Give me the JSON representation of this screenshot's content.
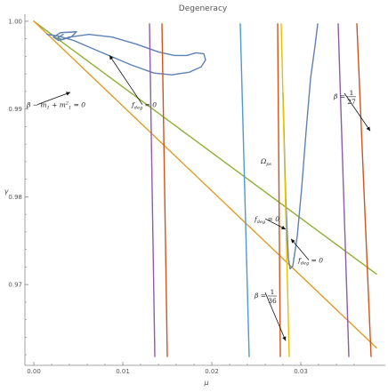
{
  "chart_data": {
    "type": "line",
    "title": "Degeneracy",
    "xlabel": "μ",
    "ylabel": "γ",
    "xlim": [
      -0.001,
      0.0395
    ],
    "ylim": [
      0.9608,
      1.0008
    ],
    "xticks": [
      0.0,
      0.01,
      0.02,
      0.03
    ],
    "xtick_labels": [
      "0.00",
      "0.01",
      "0.02",
      "0.03"
    ],
    "yticks": [
      1.0,
      0.99,
      0.98,
      0.97
    ],
    "ytick_labels": [
      "1.00",
      "0.99",
      "0.98",
      "0.97"
    ],
    "grid": false,
    "colors": {
      "blue": "#5e81b5",
      "olive": "#8fb032",
      "gold": "#e19c24",
      "yellow": "#e7c000",
      "purple": "#8e5ba8",
      "orange": "#d0541c",
      "teal": "#4c9ad0",
      "axis": "#888888",
      "text": "#555555"
    },
    "series": [
      {
        "color": "olive",
        "points": [
          [
            0.0,
            1.0
          ],
          [
            0.0385,
            0.9712
          ]
        ]
      },
      {
        "color": "gold",
        "points": [
          [
            0.0,
            1.0
          ],
          [
            0.0385,
            0.9628
          ]
        ]
      },
      {
        "color": "blue",
        "points": [
          [
            0.0015,
            0.9985
          ],
          [
            0.0028,
            0.9983
          ],
          [
            0.0045,
            0.9978
          ],
          [
            0.0075,
            0.9965
          ],
          [
            0.011,
            0.995
          ],
          [
            0.0135,
            0.9941
          ],
          [
            0.0155,
            0.9939
          ],
          [
            0.0175,
            0.9942
          ],
          [
            0.0188,
            0.9948
          ],
          [
            0.0193,
            0.9956
          ],
          [
            0.0191,
            0.9963
          ],
          [
            0.0182,
            0.9964
          ],
          [
            0.0172,
            0.9961
          ],
          [
            0.0158,
            0.9961
          ],
          [
            0.014,
            0.9965
          ],
          [
            0.0115,
            0.9974
          ],
          [
            0.0088,
            0.9982
          ],
          [
            0.0062,
            0.9985
          ],
          [
            0.004,
            0.9982
          ],
          [
            0.0028,
            0.9978
          ],
          [
            0.0022,
            0.9982
          ],
          [
            0.003,
            0.9987
          ],
          [
            0.0048,
            0.9988
          ],
          [
            0.0042,
            0.9982
          ],
          [
            0.0032,
            0.9979
          ],
          [
            0.0027,
            0.9981
          ],
          [
            0.0033,
            0.9985
          ]
        ]
      },
      {
        "color": "blue",
        "points": [
          [
            0.028,
            0.9918
          ],
          [
            0.0283,
            0.98
          ],
          [
            0.0286,
            0.973
          ],
          [
            0.0288,
            0.9718
          ],
          [
            0.0291,
            0.9721
          ],
          [
            0.0296,
            0.9755
          ],
          [
            0.0301,
            0.981
          ],
          [
            0.0306,
            0.9875
          ],
          [
            0.0311,
            0.9935
          ],
          [
            0.0316,
            0.9972
          ],
          [
            0.0319,
            0.9997
          ]
        ]
      },
      {
        "color": "purple",
        "points": [
          [
            0.013,
            0.9997
          ],
          [
            0.0136,
            0.9618
          ]
        ]
      },
      {
        "color": "orange",
        "points": [
          [
            0.0144,
            0.9997
          ],
          [
            0.015,
            0.9618
          ]
        ]
      },
      {
        "color": "teal",
        "points": [
          [
            0.0232,
            0.9997
          ],
          [
            0.0242,
            0.9618
          ]
        ]
      },
      {
        "color": "orange",
        "points": [
          [
            0.0274,
            0.9997
          ],
          [
            0.0277,
            0.9618
          ]
        ]
      },
      {
        "color": "yellow",
        "points": [
          [
            0.0278,
            0.9997
          ],
          [
            0.0287,
            0.9618
          ]
        ]
      },
      {
        "color": "purple",
        "points": [
          [
            0.0342,
            0.9997
          ],
          [
            0.0354,
            0.9618
          ]
        ]
      },
      {
        "color": "orange",
        "points": [
          [
            0.0363,
            0.9997
          ],
          [
            0.0379,
            0.9618
          ]
        ]
      }
    ],
    "annotations": [
      {
        "id": "f-deg-1",
        "text_main": "f",
        "text_sub": "deg",
        "text_tail": " = 0",
        "at": [
          0.011,
          0.9902
        ],
        "arrow_to": [
          0.0085,
          0.9961
        ]
      },
      {
        "id": "beta-curve",
        "text_main": "β − m",
        "text_sub": "1",
        "text_mid": " + m",
        "text_sub2": "1",
        "text_sup": "2",
        "text_tail": " = 0",
        "at": [
          -0.0008,
          0.9902
        ],
        "arrow_to": [
          0.0041,
          0.9919
        ]
      },
      {
        "id": "omega-ps",
        "text_main": "Ω",
        "text_sub": "ps",
        "at": [
          0.0255,
          0.9838
        ]
      },
      {
        "id": "f-deg-2",
        "text_main": "f",
        "text_sub": "deg",
        "text_tail": " = 0",
        "at": [
          0.0248,
          0.9772
        ],
        "arrow_to": [
          0.0283,
          0.9763
        ]
      },
      {
        "id": "f-deg-3",
        "text_main": "f",
        "text_sub": "deg",
        "text_tail": " = 0",
        "at": [
          0.0297,
          0.9725
        ],
        "arrow_to": [
          0.0289,
          0.9752
        ]
      },
      {
        "id": "beta-1-27",
        "text_main": "β = ",
        "frac_num": "1",
        "frac_den": "27",
        "at": [
          0.0337,
          0.9915
        ],
        "arrow_to": [
          0.0378,
          0.9875
        ]
      },
      {
        "id": "beta-1-36",
        "text_main": "β = ",
        "frac_num": "1",
        "frac_den": "36",
        "at": [
          0.0248,
          0.9688
        ],
        "arrow_to": [
          0.0283,
          0.9636
        ]
      }
    ]
  }
}
